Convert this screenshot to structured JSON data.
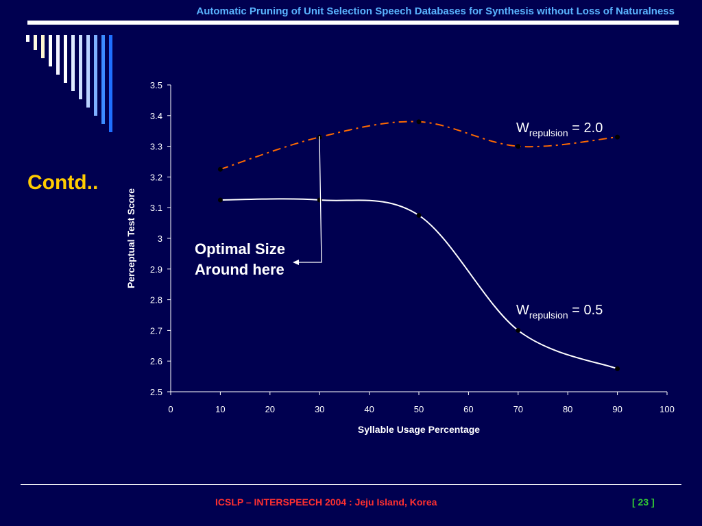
{
  "header": {
    "title": "Automatic Pruning of Unit Selection Speech Databases for Synthesis without Loss of Naturalness"
  },
  "side_heading": "Contd..",
  "footer": {
    "conference": "ICSLP – INTERSPEECH 2004 : Jeju Island, Korea",
    "page": "[ 23 ]"
  },
  "colors": {
    "background": "#000050",
    "header_text": "#5ab4ff",
    "heading": "#ffcc00",
    "series_dashed": "#ff6a00",
    "series_solid": "#ffffff",
    "footer_text": "#ff3030",
    "page_number": "#33cc33"
  },
  "annotation": {
    "line1": "Optimal Size",
    "line2": "Around here"
  },
  "series_labels": [
    {
      "prefix": "W",
      "sub": "repulsion",
      "suffix": " = 2.0"
    },
    {
      "prefix": "W",
      "sub": "repulsion",
      "suffix": " = 0.5"
    }
  ],
  "chart_data": {
    "type": "line",
    "xlabel": "Syllable Usage Percentage",
    "ylabel": "Perceptual Test Score",
    "xlim": [
      0,
      100
    ],
    "ylim": [
      2.5,
      3.5
    ],
    "xticks": [
      "0",
      "10",
      "20",
      "30",
      "40",
      "50",
      "60",
      "70",
      "80",
      "90",
      "100"
    ],
    "yticks": [
      "2.5",
      "2.6",
      "2.7",
      "2.8",
      "2.9",
      "3",
      "3.1",
      "3.2",
      "3.3",
      "3.4",
      "3.5"
    ],
    "grid": false,
    "series": [
      {
        "x": [
          10,
          30,
          50,
          70,
          90
        ],
        "values": [
          3.225,
          3.33,
          3.38,
          3.3,
          3.33
        ],
        "style": "dash-dot",
        "color": "#ff6a00"
      },
      {
        "x": [
          10,
          30,
          50,
          70,
          90
        ],
        "values": [
          3.125,
          3.125,
          3.075,
          2.7,
          2.575
        ],
        "style": "solid",
        "color": "#ffffff"
      }
    ]
  }
}
